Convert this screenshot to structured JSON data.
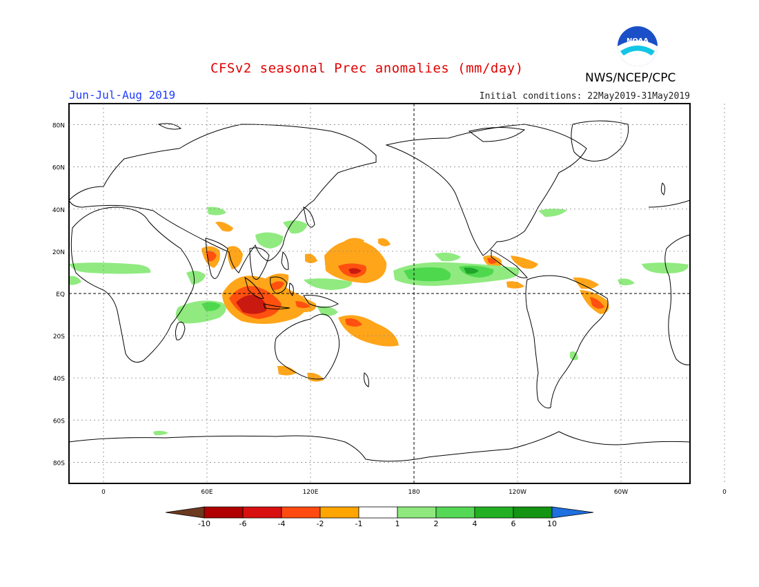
{
  "header": {
    "title": "CFSv2 seasonal Prec anomalies (mm/day)",
    "season": "Jun-Jul-Aug 2019",
    "initial_conditions": "Initial conditions: 22May2019-31May2019",
    "agency": "NWS/NCEP/CPC",
    "logo_text": "NOAA"
  },
  "map": {
    "lat_labels": [
      "80N",
      "60N",
      "40N",
      "20N",
      "EQ",
      "20S",
      "40S",
      "60S",
      "80S"
    ],
    "lon_labels": [
      "0",
      "60E",
      "120E",
      "180",
      "120W",
      "60W",
      "0"
    ],
    "highlighted_lines": [
      "EQ",
      "180"
    ]
  },
  "colorbar": {
    "tick_labels": [
      "-10",
      "-6",
      "-4",
      "-2",
      "-1",
      "1",
      "2",
      "4",
      "6",
      "10"
    ],
    "colors": [
      "#6b3a1f",
      "#b00000",
      "#d81010",
      "#ff4a10",
      "#ffa500",
      "#ffffff",
      "#8ee87e",
      "#55d855",
      "#22b022",
      "#139413",
      "#1e6fe0"
    ]
  },
  "anomaly_classes": {
    "strong_dry": "#c81a10",
    "dry": "#ff5010",
    "moderate_dry": "#ffa51a",
    "moderate_wet": "#90ea80",
    "wet": "#4ed84e",
    "strong_wet": "#1fa52a"
  }
}
